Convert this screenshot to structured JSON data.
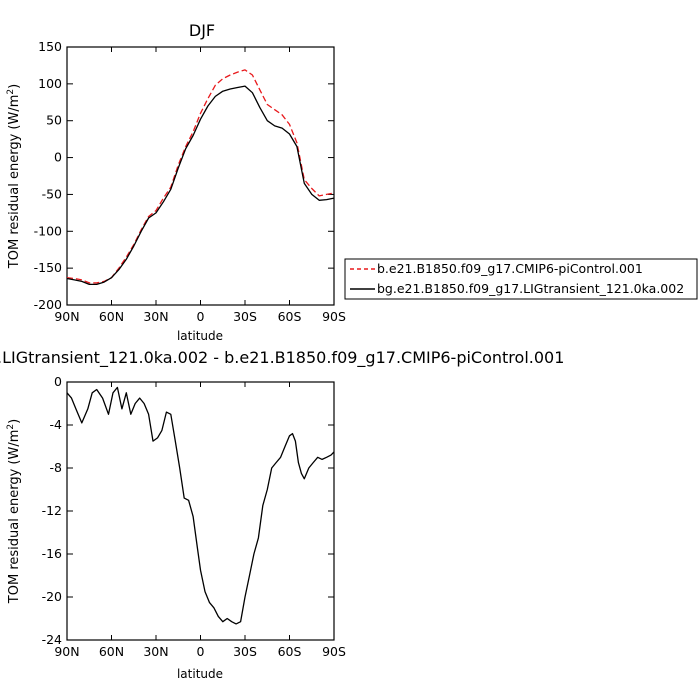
{
  "figure": {
    "title": "DJF",
    "diff_title": ".LIGtransient_121.0ka.002 - b.e21.B1850.f09_g17.CMIP6-piControl.001"
  },
  "colors": {
    "control": "#e8191c",
    "transient": "#000000",
    "diff": "#000000"
  },
  "chart_data": [
    {
      "type": "line",
      "title": "DJF",
      "xlabel": "latitude",
      "ylabel": "TOM residual energy (W/m²)",
      "x_ticks": [
        "90N",
        "60N",
        "30N",
        "0",
        "30S",
        "60S",
        "90S"
      ],
      "x_tick_values": [
        90,
        60,
        30,
        0,
        -30,
        -60,
        -90
      ],
      "xlim": [
        90,
        -90
      ],
      "y_ticks": [
        "150",
        "100",
        "50",
        "0",
        "-50",
        "-100",
        "-150",
        "-200"
      ],
      "ylim": [
        -200,
        150
      ],
      "legend_position": "right",
      "series": [
        {
          "name": "b.e21.B1850.f09_g17.CMIP6-piControl.001",
          "style": "dashed",
          "color": "#e8191c",
          "x": [
            90,
            85,
            80,
            75,
            70,
            65,
            60,
            55,
            50,
            45,
            40,
            35,
            30,
            25,
            20,
            15,
            10,
            5,
            0,
            -5,
            -10,
            -15,
            -20,
            -25,
            -30,
            -35,
            -40,
            -45,
            -50,
            -55,
            -60,
            -65,
            -70,
            -75,
            -80,
            -85,
            -90
          ],
          "values": [
            -163,
            -164,
            -166,
            -170,
            -170,
            -168,
            -163,
            -150,
            -135,
            -118,
            -98,
            -80,
            -72,
            -55,
            -40,
            -10,
            15,
            35,
            60,
            80,
            98,
            107,
            112,
            116,
            119,
            112,
            92,
            72,
            65,
            58,
            45,
            20,
            -30,
            -42,
            -52,
            -50,
            -48
          ]
        },
        {
          "name": "bg.e21.B1850.f09_g17.LIGtransient_121.0ka.002",
          "style": "solid",
          "color": "#000000",
          "x": [
            90,
            85,
            80,
            75,
            70,
            65,
            60,
            55,
            50,
            45,
            40,
            35,
            30,
            25,
            20,
            15,
            10,
            5,
            0,
            -5,
            -10,
            -15,
            -20,
            -25,
            -30,
            -35,
            -40,
            -45,
            -50,
            -55,
            -60,
            -65,
            -70,
            -75,
            -80,
            -85,
            -90
          ],
          "values": [
            -164,
            -166,
            -168,
            -172,
            -172,
            -169,
            -163,
            -152,
            -138,
            -120,
            -100,
            -82,
            -75,
            -60,
            -43,
            -14,
            12,
            30,
            52,
            70,
            83,
            90,
            93,
            95,
            97,
            88,
            68,
            50,
            43,
            40,
            32,
            15,
            -35,
            -50,
            -58,
            -57,
            -55
          ]
        }
      ]
    },
    {
      "type": "line",
      "title": ".LIGtransient_121.0ka.002 - b.e21.B1850.f09_g17.CMIP6-piControl.001",
      "xlabel": "latitude",
      "ylabel": "TOM residual energy (W/m²)",
      "x_ticks": [
        "90N",
        "60N",
        "30N",
        "0",
        "30S",
        "60S",
        "90S"
      ],
      "x_tick_values": [
        90,
        60,
        30,
        0,
        -30,
        -60,
        -90
      ],
      "xlim": [
        90,
        -90
      ],
      "y_ticks": [
        "0",
        "-4",
        "-8",
        "-12",
        "-16",
        "-20",
        "-24"
      ],
      "ylim": [
        -24,
        0
      ],
      "series": [
        {
          "name": "",
          "style": "solid",
          "color": "#000000",
          "x": [
            90,
            87,
            84,
            80,
            76,
            73,
            70,
            66,
            62,
            59,
            56,
            53,
            50,
            47,
            44,
            41,
            38,
            35,
            32,
            29,
            26,
            23,
            20,
            17,
            14,
            11,
            8,
            5,
            2,
            0,
            -3,
            -6,
            -9,
            -12,
            -15,
            -18,
            -21,
            -24,
            -27,
            -30,
            -33,
            -36,
            -39,
            -42,
            -45,
            -48,
            -51,
            -54,
            -57,
            -60,
            -62,
            -64,
            -66,
            -68,
            -70,
            -73,
            -76,
            -79,
            -82,
            -85,
            -88,
            -90
          ],
          "values": [
            -1.0,
            -1.5,
            -2.5,
            -3.8,
            -2.5,
            -1.0,
            -0.7,
            -1.5,
            -3.0,
            -1.0,
            -0.5,
            -2.5,
            -1.0,
            -3.0,
            -2.0,
            -1.5,
            -2.0,
            -3.0,
            -5.5,
            -5.2,
            -4.5,
            -2.8,
            -3.0,
            -5.5,
            -8.0,
            -10.8,
            -11.0,
            -12.5,
            -15.5,
            -17.5,
            -19.5,
            -20.5,
            -21.0,
            -21.8,
            -22.3,
            -22.0,
            -22.3,
            -22.5,
            -22.3,
            -20.0,
            -18.0,
            -16.0,
            -14.5,
            -11.5,
            -10.0,
            -8.0,
            -7.5,
            -7.0,
            -6.0,
            -5.0,
            -4.8,
            -5.5,
            -7.5,
            -8.5,
            -9.0,
            -8.0,
            -7.5,
            -7.0,
            -7.2,
            -7.0,
            -6.8,
            -6.5
          ]
        }
      ]
    }
  ]
}
